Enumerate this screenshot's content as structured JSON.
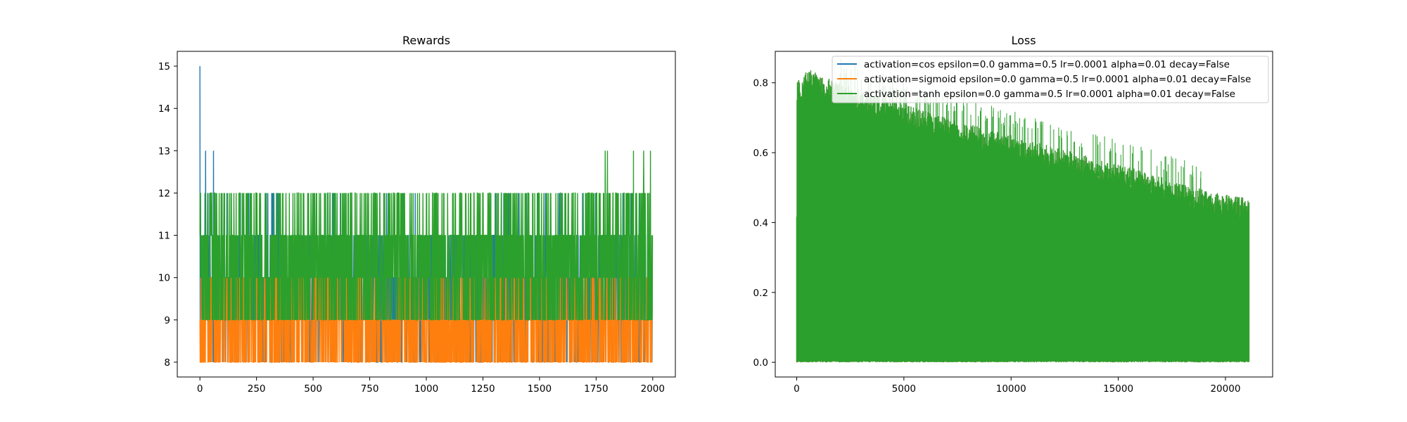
{
  "colors": {
    "cos": "#1f77b4",
    "sigmoid": "#ff7f0e",
    "tanh": "#2ca02c"
  },
  "chart_data": [
    {
      "type": "line",
      "title": "Rewards",
      "xlabel": "",
      "ylabel": "",
      "xlim": [
        -100,
        2100
      ],
      "ylim": [
        7.65,
        15.35
      ],
      "xticks": [
        0,
        250,
        500,
        750,
        1000,
        1250,
        1500,
        1750,
        2000
      ],
      "yticks": [
        8,
        9,
        10,
        11,
        12,
        13,
        14,
        15
      ],
      "x_range": [
        0,
        2000
      ],
      "grid": false,
      "series": [
        {
          "color_key": "cos",
          "description": "episode reward per episode, values in {8,...,13}, peak 15 at first episode",
          "values_summary": {
            "min": 8,
            "max": 15,
            "typical_low": 9,
            "typical_high": 11
          }
        },
        {
          "color_key": "sigmoid",
          "description": "episode reward per episode, mostly 8-10",
          "values_summary": {
            "min": 8,
            "max": 10,
            "typical_low": 8,
            "typical_high": 10
          }
        },
        {
          "color_key": "tanh",
          "description": "episode reward per episode, mostly 9-12 with spikes to 13",
          "values_summary": {
            "min": 9,
            "max": 13,
            "typical_low": 9,
            "typical_high": 12
          }
        }
      ],
      "spikes": {
        "cos_high": [
          [
            0,
            15
          ],
          [
            25,
            13
          ],
          [
            60,
            13
          ]
        ],
        "tanh_high": [
          [
            1790,
            13
          ],
          [
            1800,
            13
          ],
          [
            1915,
            13
          ],
          [
            1960,
            13
          ],
          [
            1990,
            13
          ]
        ]
      }
    },
    {
      "type": "line",
      "title": "Loss",
      "xlabel": "",
      "ylabel": "",
      "xlim": [
        -1000,
        22200
      ],
      "ylim": [
        -0.042,
        0.89
      ],
      "xticks": [
        0,
        5000,
        10000,
        15000,
        20000
      ],
      "yticks": [
        0.0,
        0.2,
        0.4,
        0.6,
        0.8
      ],
      "x_range": [
        0,
        21100
      ],
      "grid": false,
      "legend_position": "top-right",
      "series": [
        {
          "name": "activation=cos epsilon=0.0 gamma=0.5 lr=0.0001 alpha=0.01 decay=False",
          "color_key": "cos"
        },
        {
          "name": "activation=sigmoid epsilon=0.0 gamma=0.5 lr=0.0001 alpha=0.01 decay=False",
          "color_key": "sigmoid"
        },
        {
          "name": "activation=tanh epsilon=0.0 gamma=0.5 lr=0.0001 alpha=0.01 decay=False",
          "color_key": "tanh"
        }
      ],
      "envelope": {
        "x": [
          0,
          500,
          2000,
          4000,
          7000,
          10000,
          13000,
          16000,
          18000,
          20000,
          21100
        ],
        "upper": [
          0.8,
          0.84,
          0.8,
          0.76,
          0.7,
          0.65,
          0.6,
          0.55,
          0.51,
          0.48,
          0.47
        ],
        "lower": [
          0.0,
          0.0,
          0.0,
          0.0,
          0.0,
          0.0,
          0.0,
          0.0,
          0.0,
          0.0,
          0.0
        ]
      }
    }
  ]
}
